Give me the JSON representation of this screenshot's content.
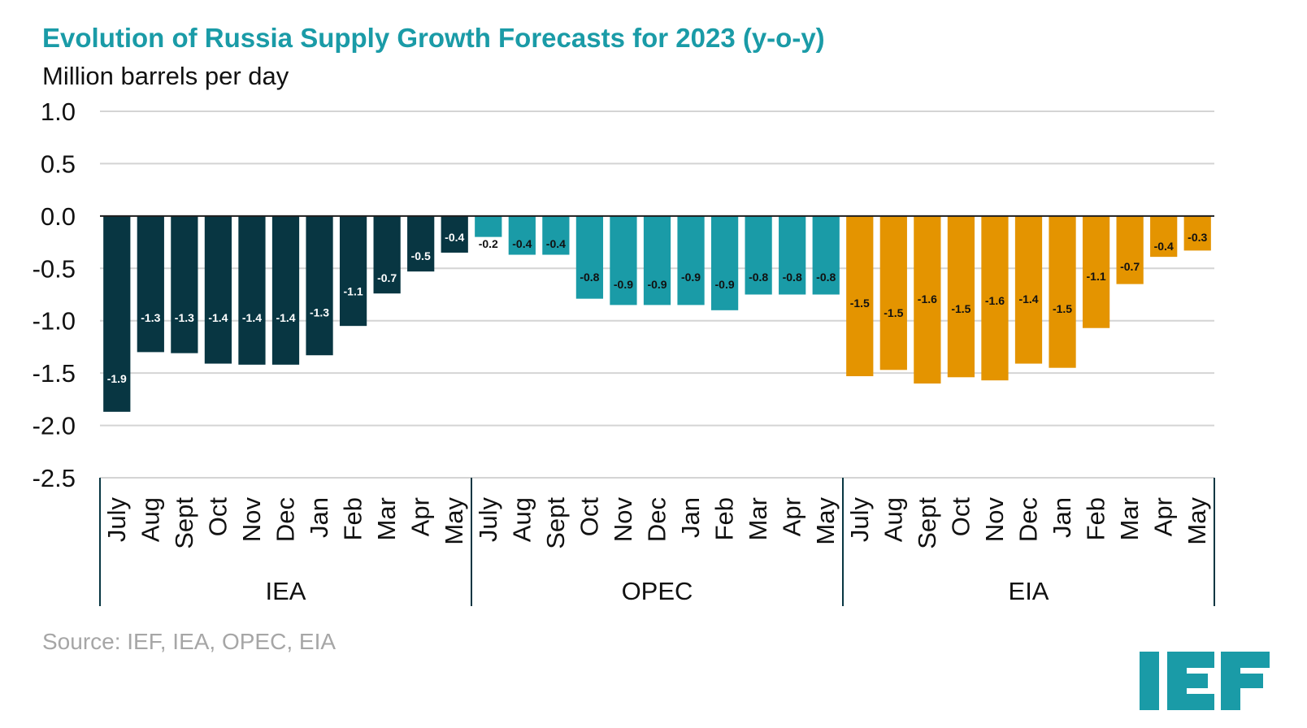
{
  "title": "Evolution of Russia Supply Growth Forecasts for 2023 (y-o-y)",
  "subtitle": "Million barrels per day",
  "source": "Source: IEF, IEA, OPEC, EIA",
  "logo_text": "IEF",
  "colors": {
    "IEA": "#083642",
    "OPEC": "#1a9ba7",
    "EIA": "#e49400",
    "title": "#1a9ba7",
    "logo": "#1a9ba7"
  },
  "chart_data": {
    "type": "bar",
    "title": "Evolution of Russia Supply Growth Forecasts for 2023 (y-o-y)",
    "ylabel": "Million barrels per day",
    "ylim": [
      -2.5,
      1.0
    ],
    "yticks": [
      1.0,
      0.5,
      0.0,
      -0.5,
      -1.0,
      -1.5,
      -2.0,
      -2.5
    ],
    "ytick_labels": [
      "1.0",
      "0.5",
      "0.0",
      "-0.5",
      "-1.0",
      "-1.5",
      "-2.0",
      "-2.5"
    ],
    "grid": true,
    "groups": [
      {
        "name": "IEA",
        "categories": [
          "July",
          "Aug",
          "Sept",
          "Oct",
          "Nov",
          "Dec",
          "Jan",
          "Feb",
          "Mar",
          "Apr",
          "May"
        ],
        "values": [
          -1.87,
          -1.3,
          -1.31,
          -1.41,
          -1.42,
          -1.42,
          -1.33,
          -1.05,
          -0.74,
          -0.53,
          -0.35
        ],
        "labels": [
          "-1.9",
          "-1.3",
          "-1.3",
          "-1.4",
          "-1.4",
          "-1.4",
          "-1.3",
          "-1.1",
          "-0.7",
          "-0.5",
          "-0.4"
        ]
      },
      {
        "name": "OPEC",
        "categories": [
          "July",
          "Aug",
          "Sept",
          "Oct",
          "Nov",
          "Dec",
          "Jan",
          "Feb",
          "Mar",
          "Apr",
          "May"
        ],
        "values": [
          -0.2,
          -0.37,
          -0.37,
          -0.79,
          -0.85,
          -0.85,
          -0.85,
          -0.9,
          -0.75,
          -0.75,
          -0.75
        ],
        "labels": [
          "-0.2",
          "-0.4",
          "-0.4",
          "-0.8",
          "-0.9",
          "-0.9",
          "-0.9",
          "-0.9",
          "-0.8",
          "-0.8",
          "-0.8"
        ]
      },
      {
        "name": "EIA",
        "categories": [
          "July",
          "Aug",
          "Sept",
          "Oct",
          "Nov",
          "Dec",
          "Jan",
          "Feb",
          "Mar",
          "Apr",
          "May"
        ],
        "values": [
          -1.53,
          -1.47,
          -1.6,
          -1.54,
          -1.57,
          -1.41,
          -1.45,
          -1.07,
          -0.65,
          -0.39,
          -0.33
        ],
        "labels": [
          "-1.5",
          "-1.5",
          "-1.6",
          "-1.5",
          "-1.6",
          "-1.4",
          "-1.5",
          "-1.1",
          "-0.7",
          "-0.4",
          "-0.3"
        ]
      }
    ]
  }
}
